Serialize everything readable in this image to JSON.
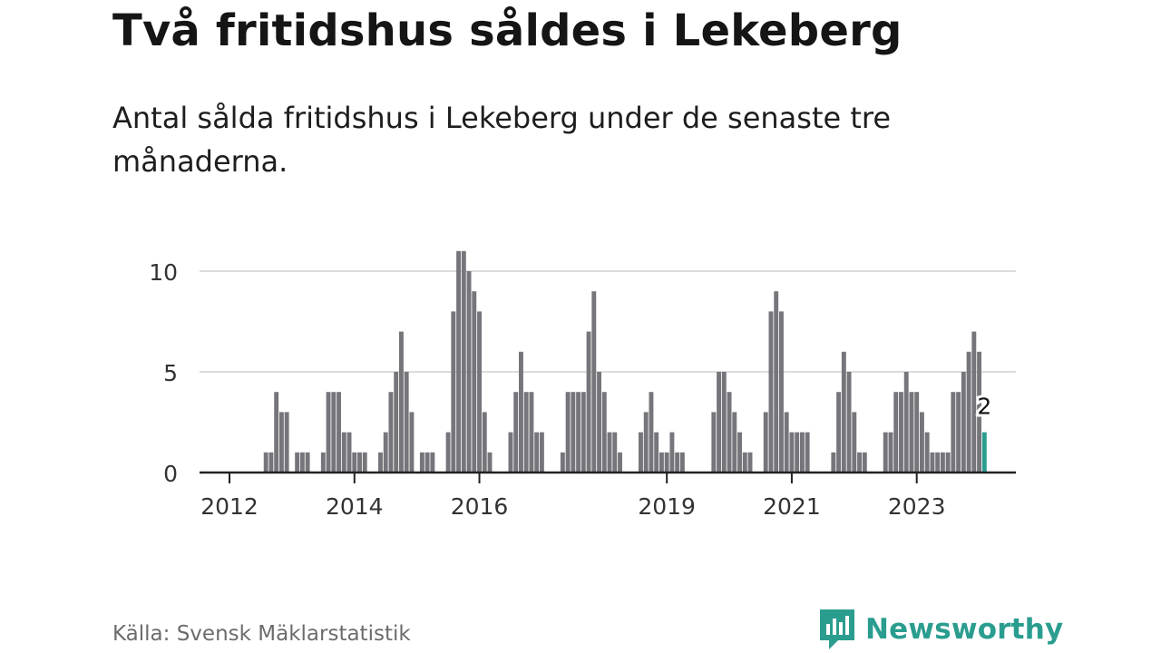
{
  "header": {
    "title": "Två fritidshus såldes i Lekeberg",
    "subtitle": "Antal sålda fritidshus i Lekeberg under de senaste tre månaderna."
  },
  "footer": {
    "source": "Källa: Svensk Mäklarstatistik",
    "brand": "Newsworthy",
    "brand_icon": "newsworthy-logo-icon"
  },
  "colors": {
    "bar": "#75757b",
    "highlight": "#2a9d8f",
    "grid": "#dcdcdc",
    "axis": "#222222",
    "brand": "#2a9d8f"
  },
  "chart_data": {
    "type": "bar",
    "x_start": "2011-09",
    "x_end": "2023-12",
    "x_tick_labels": [
      "2012",
      "2014",
      "2016",
      "2019",
      "2021",
      "2023"
    ],
    "y_ticks": [
      0,
      5,
      10
    ],
    "ylim": [
      0,
      11
    ],
    "grid": true,
    "highlight_label": "2",
    "values": [
      0,
      0,
      0,
      0,
      0,
      0,
      0,
      0,
      0,
      0,
      0,
      1,
      1,
      4,
      3,
      3,
      0,
      1,
      1,
      1,
      0,
      0,
      1,
      4,
      4,
      4,
      2,
      2,
      1,
      1,
      1,
      0,
      0,
      1,
      2,
      4,
      5,
      7,
      5,
      3,
      0,
      1,
      1,
      1,
      0,
      0,
      2,
      8,
      11,
      11,
      10,
      9,
      8,
      3,
      1,
      0,
      0,
      0,
      2,
      4,
      6,
      4,
      4,
      2,
      2,
      0,
      0,
      0,
      1,
      4,
      4,
      4,
      4,
      7,
      9,
      5,
      4,
      2,
      2,
      1,
      0,
      0,
      0,
      2,
      3,
      4,
      2,
      1,
      1,
      2,
      1,
      1,
      0,
      0,
      0,
      0,
      0,
      3,
      5,
      5,
      4,
      3,
      2,
      1,
      1,
      0,
      0,
      3,
      8,
      9,
      8,
      3,
      2,
      2,
      2,
      2,
      0,
      0,
      0,
      0,
      1,
      4,
      6,
      5,
      3,
      1,
      1,
      0,
      0,
      0,
      2,
      2,
      4,
      4,
      5,
      4,
      4,
      3,
      2,
      1,
      1,
      1,
      1,
      4,
      4,
      5,
      6,
      7,
      6,
      2
    ]
  }
}
